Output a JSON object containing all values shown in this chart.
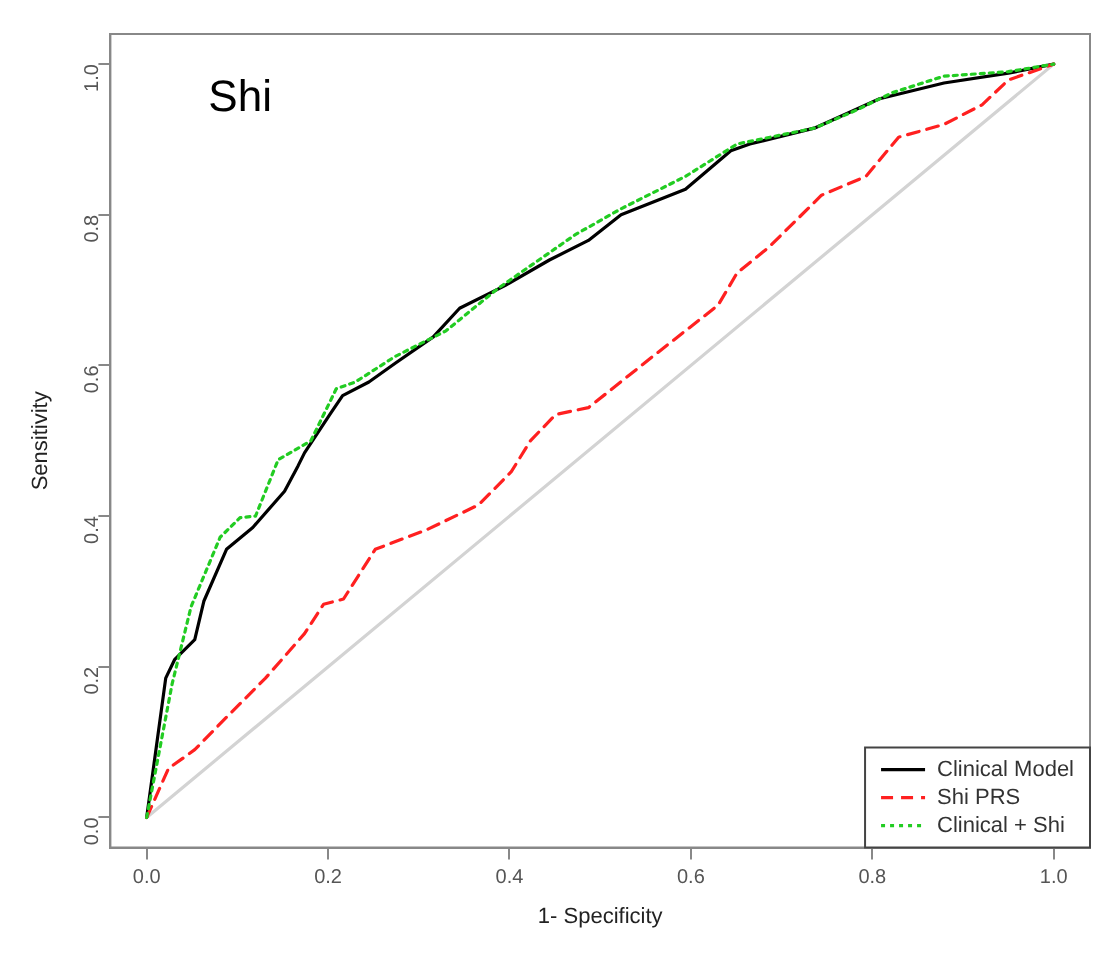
{
  "chart_data": {
    "type": "line",
    "xlabel": "1- Specificity",
    "ylabel": "Sensitivity",
    "annotations": [
      "Shi"
    ],
    "xlim": [
      -0.04,
      1.04
    ],
    "ylim": [
      -0.04,
      1.04
    ],
    "xticks": [
      {
        "value": 0,
        "label": "0.0"
      },
      {
        "value": 0.2,
        "label": "0.2"
      },
      {
        "value": 0.4,
        "label": "0.4"
      },
      {
        "value": 0.6,
        "label": "0.6"
      },
      {
        "value": 0.8,
        "label": "0.8"
      },
      {
        "value": 1,
        "label": "1.0"
      }
    ],
    "yticks": [
      {
        "value": 0,
        "label": "0.0"
      },
      {
        "value": 0.2,
        "label": "0.2"
      },
      {
        "value": 0.4,
        "label": "0.4"
      },
      {
        "value": 0.6,
        "label": "0.6"
      },
      {
        "value": 0.8,
        "label": "0.8"
      },
      {
        "value": 1,
        "label": "1.0"
      }
    ],
    "grid": false,
    "legend": "bottom right",
    "marker": "none",
    "series": [
      {
        "color": "#d3d3d3",
        "line_style": "solid",
        "x": [
          0,
          1
        ],
        "values": [
          0,
          1
        ]
      },
      {
        "name": "Clinical Model",
        "color": "#000000",
        "line_style": "solid",
        "x": [
          0,
          0.021,
          0.031,
          0.053,
          0.063,
          0.088,
          0.117,
          0.152,
          0.167,
          0.174,
          0.202,
          0.216,
          0.245,
          0.274,
          0.316,
          0.345,
          0.395,
          0.444,
          0.487,
          0.523,
          0.594,
          0.644,
          0.665,
          0.736,
          0.808,
          0.879,
          0.95,
          1
        ],
        "values": [
          0,
          0.185,
          0.21,
          0.236,
          0.287,
          0.356,
          0.385,
          0.433,
          0.467,
          0.484,
          0.535,
          0.56,
          0.578,
          0.603,
          0.638,
          0.676,
          0.706,
          0.74,
          0.766,
          0.8,
          0.834,
          0.885,
          0.894,
          0.915,
          0.954,
          0.975,
          0.988,
          1
        ]
      },
      {
        "name": "Shi PRS",
        "color": "#ff2020",
        "line_style": "dashed",
        "x": [
          0,
          0.024,
          0.053,
          0.088,
          0.131,
          0.174,
          0.195,
          0.217,
          0.252,
          0.309,
          0.366,
          0.402,
          0.423,
          0.451,
          0.487,
          0.558,
          0.63,
          0.651,
          0.686,
          0.744,
          0.793,
          0.829,
          0.879,
          0.921,
          0.95,
          1
        ],
        "values": [
          0,
          0.065,
          0.09,
          0.133,
          0.185,
          0.244,
          0.283,
          0.29,
          0.356,
          0.382,
          0.415,
          0.459,
          0.5,
          0.535,
          0.544,
          0.612,
          0.68,
          0.723,
          0.757,
          0.826,
          0.851,
          0.903,
          0.92,
          0.946,
          0.979,
          1
        ]
      },
      {
        "name": "Clinical + Shi",
        "color": "#22cc22",
        "line_style": "dotted",
        "x": [
          0,
          0.028,
          0.049,
          0.081,
          0.103,
          0.12,
          0.145,
          0.181,
          0.209,
          0.23,
          0.274,
          0.33,
          0.387,
          0.473,
          0.523,
          0.594,
          0.651,
          0.736,
          0.779,
          0.822,
          0.879,
          0.95,
          1
        ],
        "values": [
          0,
          0.177,
          0.28,
          0.372,
          0.398,
          0.4,
          0.475,
          0.5,
          0.569,
          0.578,
          0.612,
          0.646,
          0.702,
          0.774,
          0.808,
          0.851,
          0.894,
          0.915,
          0.937,
          0.962,
          0.984,
          0.99,
          1
        ]
      }
    ]
  }
}
